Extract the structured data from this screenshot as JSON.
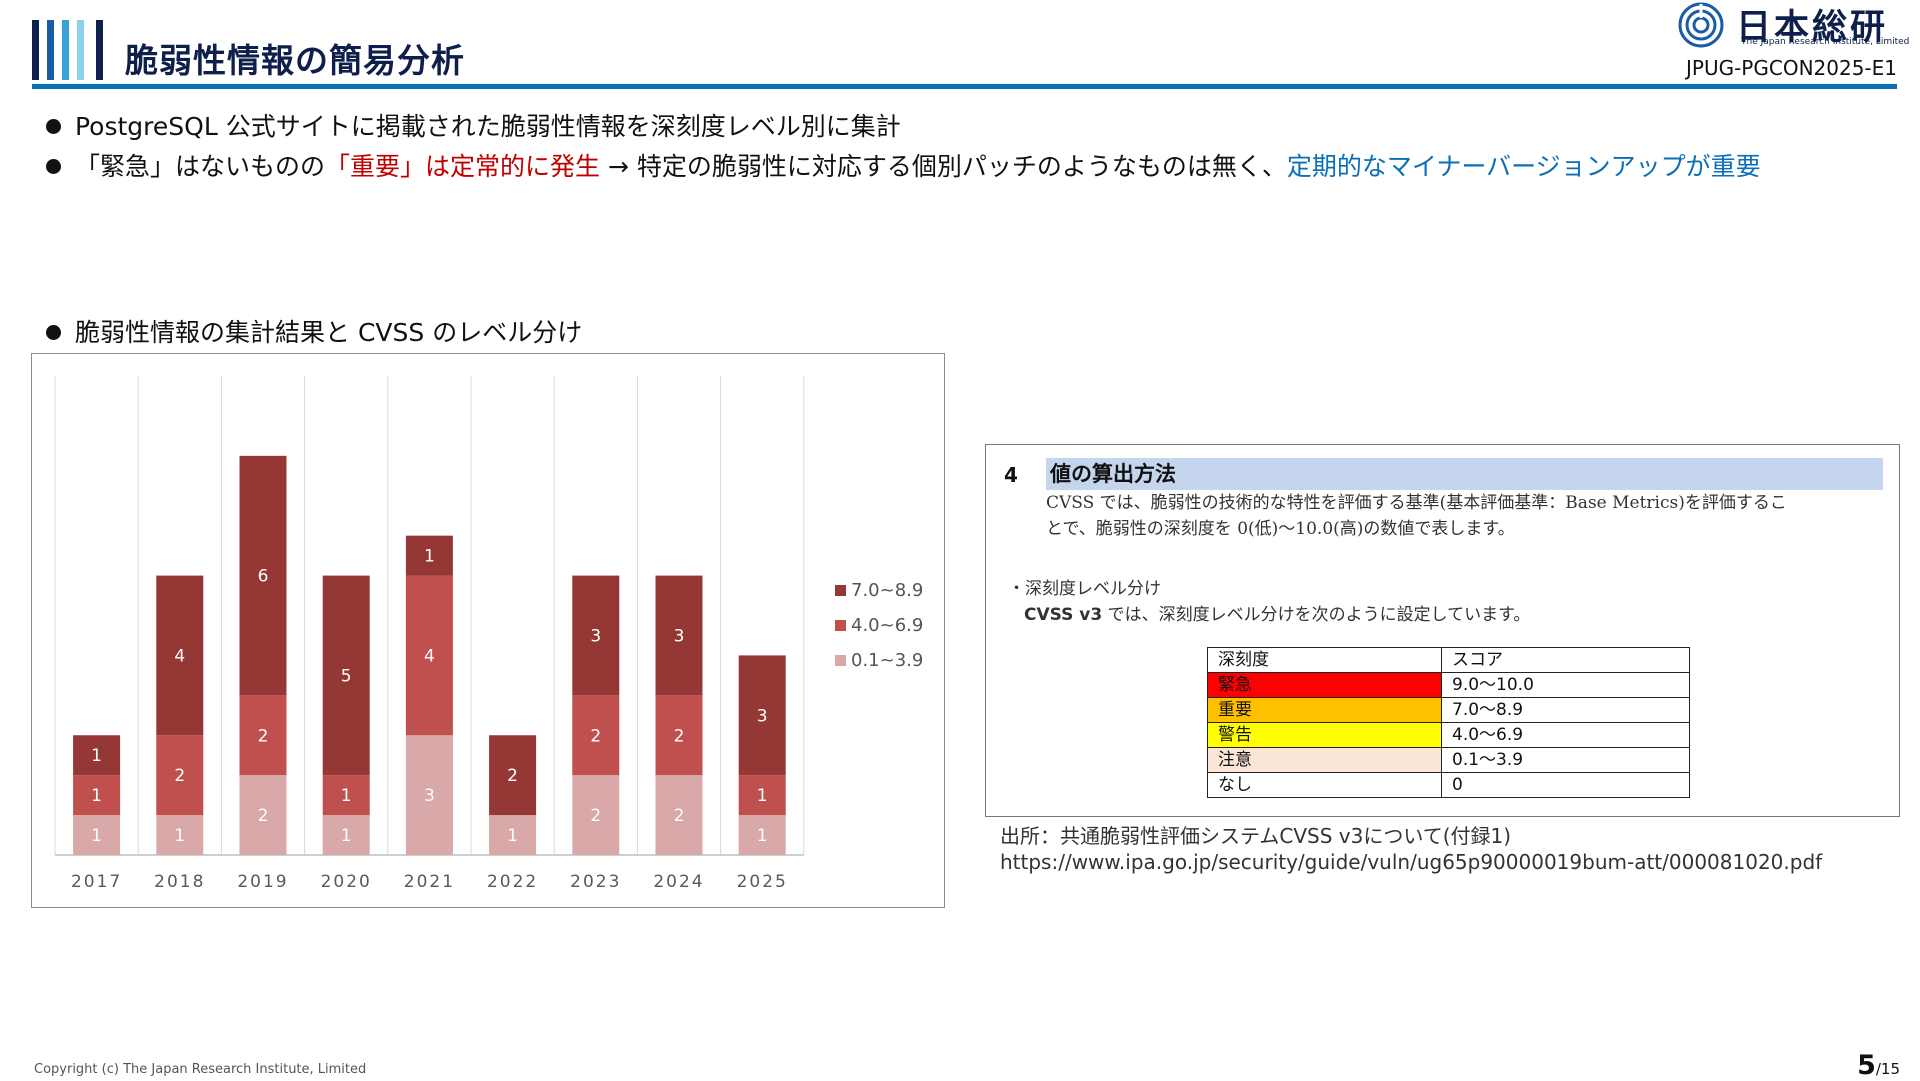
{
  "header": {
    "title": "脆弱性情報の簡易分析",
    "logo_text": "日本総研",
    "logo_sub": "The Japan Research Institute, Limited",
    "doc_id": "JPUG-PGCON2025-E1",
    "accent_colors": [
      "#0d1f4a",
      "#1a5ca8",
      "#3aa0d8",
      "#8fd0ee",
      "#0d1f4a"
    ]
  },
  "bullets": {
    "b1": "PostgreSQL 公式サイトに掲載された脆弱性情報を深刻度レベル別に集計",
    "b2_part1": "「緊急」はないものの",
    "b2_part2_red": "「重要」は定常的に発生",
    "b2_part3": " → 特定の脆弱性に対応する個別パッチのようなものは無く、",
    "b2_part4_blue": "定期的なマイナーバージョンアップが重要",
    "b3": "脆弱性情報の集計結果と CVSS のレベル分け"
  },
  "chart_data": {
    "type": "bar",
    "stacked": true,
    "categories": [
      "2017",
      "2018",
      "2019",
      "2020",
      "2021",
      "2022",
      "2023",
      "2024",
      "2025"
    ],
    "series": [
      {
        "name": "0.1~3.9",
        "color": "#d9a8a8",
        "values": [
          1,
          1,
          2,
          1,
          3,
          1,
          2,
          2,
          1
        ]
      },
      {
        "name": "4.0~6.9",
        "color": "#c0504d",
        "values": [
          1,
          2,
          2,
          1,
          4,
          0,
          2,
          2,
          1
        ]
      },
      {
        "name": "7.0~8.9",
        "color": "#953735",
        "values": [
          1,
          4,
          6,
          5,
          1,
          2,
          3,
          3,
          3
        ]
      }
    ],
    "legend_order": [
      "7.0~8.9",
      "4.0~6.9",
      "0.1~3.9"
    ],
    "legend_position": "right",
    "ylim": [
      0,
      12
    ],
    "grid": "vertical"
  },
  "cvss": {
    "section_num": "4",
    "section_title": "値の算出方法",
    "desc_line1": "CVSS では、脆弱性の技術的な特性を評価する基準(基本評価基準：Base Metrics)を評価するこ",
    "desc_line2": "とで、脆弱性の深刻度を 0(低)～10.0(高)の数値で表します。",
    "levels_heading": "・深刻度レベル分け",
    "levels_desc_bold": "CVSS v3",
    "levels_desc_rest": " では、深刻度レベル分けを次のように設定しています。",
    "table": {
      "headers": [
        "深刻度",
        "スコア"
      ],
      "rows": [
        {
          "level": "緊急",
          "score": "9.0～10.0",
          "color": "#ff0000"
        },
        {
          "level": "重要",
          "score": "7.0～8.9",
          "color": "#ffc000"
        },
        {
          "level": "警告",
          "score": "4.0～6.9",
          "color": "#ffff00"
        },
        {
          "level": "注意",
          "score": "0.1～3.9",
          "color": "#fbe5d6"
        },
        {
          "level": "なし",
          "score": "0",
          "color": "#ffffff"
        }
      ]
    }
  },
  "source": {
    "line1": "出所：共通脆弱性評価システムCVSS v3について(付録1)",
    "line2": "https://www.ipa.go.jp/security/guide/vuln/ug65p90000019bum-att/000081020.pdf"
  },
  "footer": {
    "copyright": "Copyright (c) The Japan Research Institute, Limited",
    "page_current": "5",
    "page_total": "/15"
  }
}
